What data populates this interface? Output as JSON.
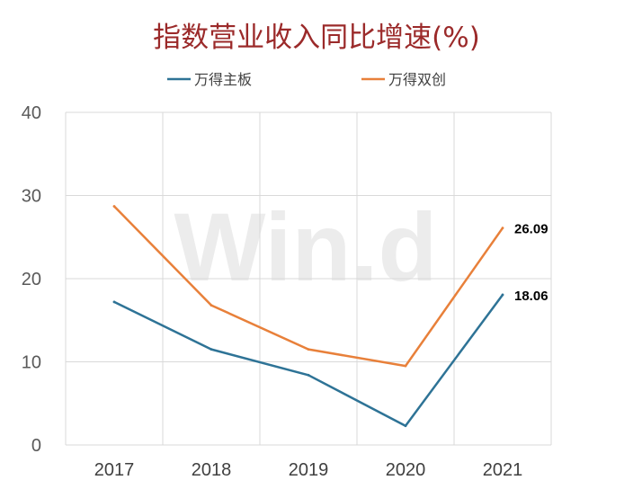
{
  "chart_data": {
    "type": "line",
    "title": "指数营业收入同比增速(%)",
    "watermark": "Win.d",
    "categories": [
      "2017",
      "2018",
      "2019",
      "2020",
      "2021"
    ],
    "series": [
      {
        "name": "万得主板",
        "color": "#2e7396",
        "values": [
          17.2,
          11.5,
          8.4,
          2.3,
          18.06
        ],
        "end_label": "18.06"
      },
      {
        "name": "万得双创",
        "color": "#e8803a",
        "values": [
          28.7,
          16.8,
          11.5,
          9.5,
          26.09
        ],
        "end_label": "26.09"
      }
    ],
    "yticks": [
      "0",
      "10",
      "20",
      "30",
      "40"
    ],
    "ylim": [
      0,
      40
    ],
    "grid": true,
    "legend": "top",
    "colors": {
      "title": "#9b2a2a",
      "grid": "#d9d9d9"
    }
  }
}
